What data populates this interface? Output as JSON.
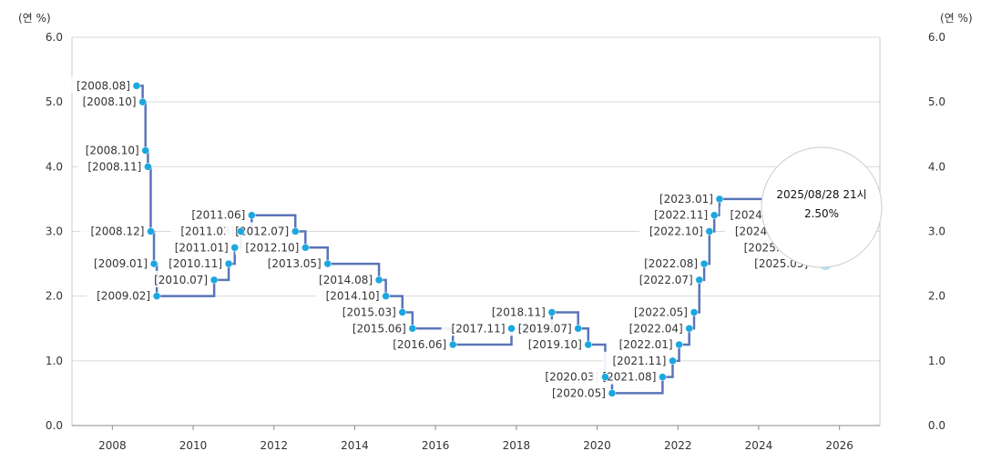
{
  "chart_data": {
    "type": "line",
    "step": true,
    "y_unit_left": "(연 %)",
    "y_unit_right": "(연 %)",
    "ylim": [
      0,
      6
    ],
    "y_ticks": [
      "0.0",
      "1.0",
      "2.0",
      "3.0",
      "4.0",
      "5.0",
      "6.0"
    ],
    "xlim": [
      2007,
      2027
    ],
    "x_ticks": [
      "2008",
      "2010",
      "2012",
      "2014",
      "2016",
      "2018",
      "2020",
      "2022",
      "2024",
      "2026"
    ],
    "grid": true,
    "series": [
      {
        "color": "#5a75b8",
        "marker_color": "#1aa8e0",
        "points": [
          {
            "label": "[2008.08]",
            "x": 2008.6,
            "y": 5.25
          },
          {
            "label": "[2008.10]",
            "x": 2008.75,
            "y": 5.0
          },
          {
            "label": "[2008.10]",
            "x": 2008.82,
            "y": 4.25
          },
          {
            "label": "[2008.11]",
            "x": 2008.88,
            "y": 4.0
          },
          {
            "label": "[2008.12]",
            "x": 2008.95,
            "y": 3.0
          },
          {
            "label": "[2009.01]",
            "x": 2009.03,
            "y": 2.5
          },
          {
            "label": "[2009.02]",
            "x": 2009.1,
            "y": 2.0
          },
          {
            "label": "[2010.07]",
            "x": 2010.52,
            "y": 2.25
          },
          {
            "label": "[2010.11]",
            "x": 2010.88,
            "y": 2.5
          },
          {
            "label": "[2011.01]",
            "x": 2011.03,
            "y": 2.75
          },
          {
            "label": "[2011.03]",
            "x": 2011.18,
            "y": 3.0
          },
          {
            "label": "[2011.06]",
            "x": 2011.45,
            "y": 3.25
          },
          {
            "label": "[2012.07]",
            "x": 2012.53,
            "y": 3.0
          },
          {
            "label": "[2012.10]",
            "x": 2012.78,
            "y": 2.75
          },
          {
            "label": "[2013.05]",
            "x": 2013.33,
            "y": 2.5
          },
          {
            "label": "[2014.08]",
            "x": 2014.6,
            "y": 2.25
          },
          {
            "label": "[2014.10]",
            "x": 2014.77,
            "y": 2.0
          },
          {
            "label": "[2015.03]",
            "x": 2015.18,
            "y": 1.75
          },
          {
            "label": "[2015.06]",
            "x": 2015.43,
            "y": 1.5
          },
          {
            "label": "[2016.06]",
            "x": 2016.43,
            "y": 1.25
          },
          {
            "label": "[2017.11]",
            "x": 2017.88,
            "y": 1.5
          },
          {
            "label": "[2018.11]",
            "x": 2018.88,
            "y": 1.75
          },
          {
            "label": "[2019.07]",
            "x": 2019.53,
            "y": 1.5
          },
          {
            "label": "[2019.10]",
            "x": 2019.78,
            "y": 1.25
          },
          {
            "label": "[2020.03]",
            "x": 2020.2,
            "y": 0.75
          },
          {
            "label": "[2020.05]",
            "x": 2020.37,
            "y": 0.5
          },
          {
            "label": "[2021.08]",
            "x": 2021.62,
            "y": 0.75
          },
          {
            "label": "[2021.11]",
            "x": 2021.87,
            "y": 1.0
          },
          {
            "label": "[2022.01]",
            "x": 2022.03,
            "y": 1.25
          },
          {
            "label": "[2022.04]",
            "x": 2022.28,
            "y": 1.5
          },
          {
            "label": "[2022.05]",
            "x": 2022.4,
            "y": 1.75
          },
          {
            "label": "[2022.07]",
            "x": 2022.53,
            "y": 2.25
          },
          {
            "label": "[2022.08]",
            "x": 2022.65,
            "y": 2.5
          },
          {
            "label": "[2022.10]",
            "x": 2022.78,
            "y": 3.0
          },
          {
            "label": "[2022.11]",
            "x": 2022.9,
            "y": 3.25
          },
          {
            "label": "[2023.01]",
            "x": 2023.03,
            "y": 3.5
          },
          {
            "label": "[2024.10]",
            "x": 2024.78,
            "y": 3.25
          },
          {
            "label": "[2024.11]",
            "x": 2024.9,
            "y": 3.0
          },
          {
            "label": "[2025.02]",
            "x": 2025.12,
            "y": 2.75
          },
          {
            "label": "[2025.05]",
            "x": 2025.38,
            "y": 2.5
          },
          {
            "label": "",
            "x": 2025.65,
            "y": 2.5
          }
        ]
      }
    ],
    "tooltip": {
      "date": "2025/08/28 21시",
      "value": "2.50%"
    }
  }
}
